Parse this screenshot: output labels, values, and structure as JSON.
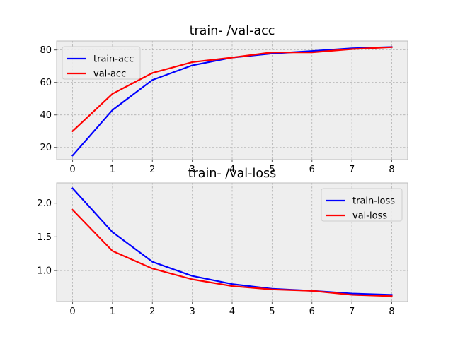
{
  "chart_data": [
    {
      "type": "line",
      "title": "train- /val-acc",
      "xlabel": "",
      "ylabel": "",
      "x": [
        0,
        1,
        2,
        3,
        4,
        5,
        6,
        7,
        8
      ],
      "xlim": [
        -0.4,
        8.4
      ],
      "ylim": [
        12.5,
        85.5
      ],
      "xticks": [
        0,
        1,
        2,
        3,
        4,
        5,
        6,
        7,
        8
      ],
      "yticks": [
        20,
        40,
        60,
        80
      ],
      "grid": true,
      "legend_position": "top-left",
      "series": [
        {
          "name": "train-acc",
          "color": "#0000ff",
          "values": [
            15,
            43,
            61.5,
            70.5,
            75.3,
            77.8,
            79.3,
            81,
            81.8
          ]
        },
        {
          "name": "val-acc",
          "color": "#ff0000",
          "values": [
            30,
            53,
            65.8,
            72.5,
            75.3,
            78.5,
            78.5,
            80.5,
            81.7
          ]
        }
      ]
    },
    {
      "type": "line",
      "title": "train- /val-loss",
      "xlabel": "",
      "ylabel": "",
      "x": [
        0,
        1,
        2,
        3,
        4,
        5,
        6,
        7,
        8
      ],
      "xlim": [
        -0.4,
        8.4
      ],
      "ylim": [
        0.54,
        2.3
      ],
      "xticks": [
        0,
        1,
        2,
        3,
        4,
        5,
        6,
        7,
        8
      ],
      "yticks": [
        1.0,
        1.5,
        2.0
      ],
      "ytick_labels": [
        "1.0",
        "1.5",
        "2.0"
      ],
      "grid": true,
      "legend_position": "top-right",
      "series": [
        {
          "name": "train-loss",
          "color": "#0000ff",
          "values": [
            2.22,
            1.57,
            1.13,
            0.92,
            0.8,
            0.73,
            0.7,
            0.66,
            0.64
          ]
        },
        {
          "name": "val-loss",
          "color": "#ff0000",
          "values": [
            1.9,
            1.29,
            1.03,
            0.87,
            0.77,
            0.72,
            0.7,
            0.64,
            0.62
          ]
        }
      ]
    }
  ]
}
